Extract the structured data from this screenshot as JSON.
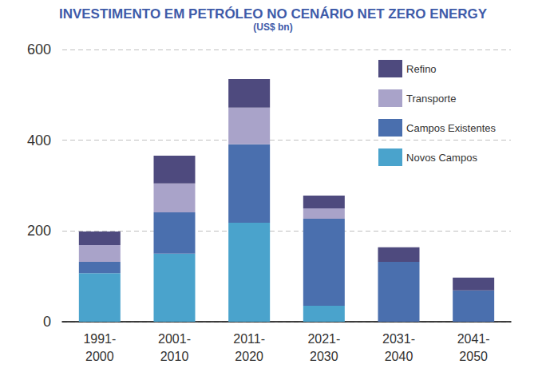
{
  "chart_data": {
    "type": "bar",
    "title": "INVESTIMENTO EM PETRÓLEO NO CENÁRIO NET ZERO ENERGY",
    "subtitle": "(US$ bn)",
    "categories": [
      "1991-\n2000",
      "2001-\n2010",
      "2011-\n2020",
      "2021-\n2030",
      "2031-\n2040",
      "2041-\n2050"
    ],
    "series": [
      {
        "name": "Novos Campos",
        "color": "#4aa3cc",
        "values": [
          107,
          150,
          218,
          35,
          0,
          0
        ]
      },
      {
        "name": "Campos Existentes",
        "color": "#4a6fae",
        "values": [
          25,
          91,
          173,
          192,
          132,
          69
        ]
      },
      {
        "name": "Transporte",
        "color": "#a9a3c9",
        "values": [
          37,
          64,
          81,
          23,
          0,
          0
        ]
      },
      {
        "name": "Refino",
        "color": "#4e4a7e",
        "values": [
          30,
          61,
          63,
          28,
          32,
          28
        ]
      }
    ],
    "ylim": [
      0,
      600
    ],
    "yticks": [
      0,
      200,
      400,
      600
    ],
    "grid": true,
    "stacked": true,
    "legend": "top-right",
    "data_labels": false
  }
}
